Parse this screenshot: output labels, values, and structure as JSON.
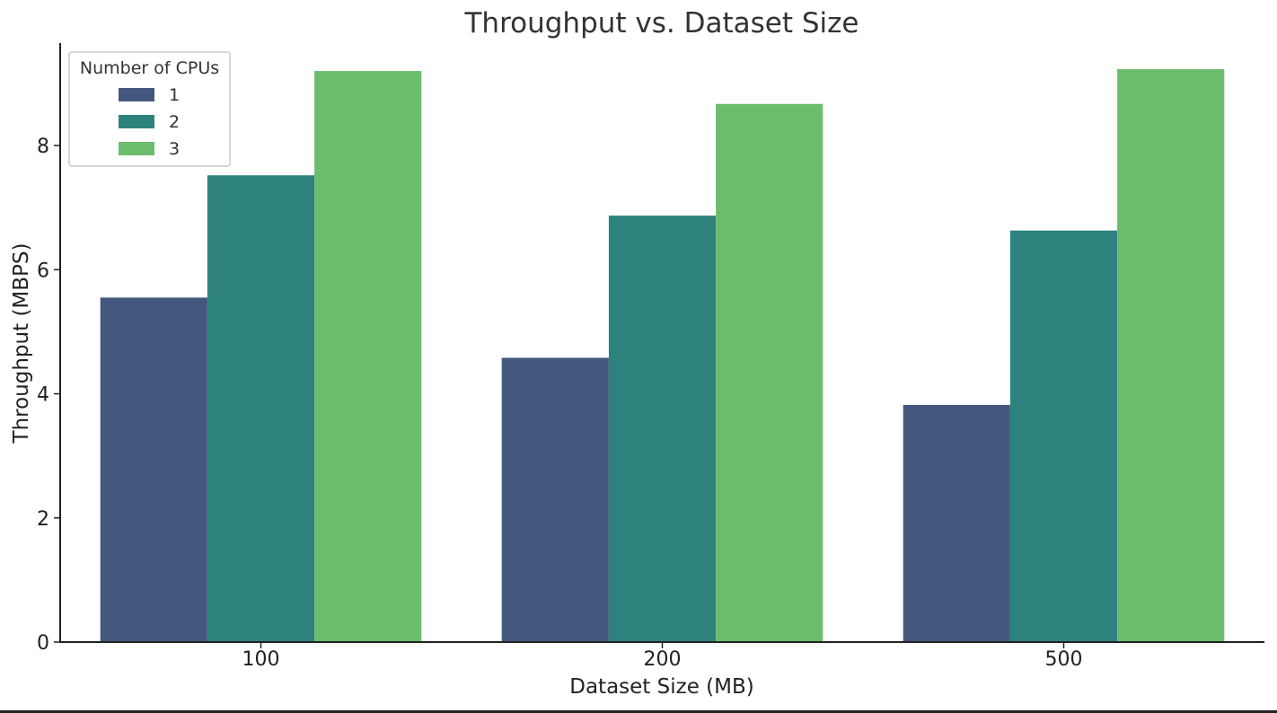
{
  "chart_data": {
    "type": "bar",
    "title": "Throughput vs. Dataset Size",
    "xlabel": "Dataset Size (MB)",
    "ylabel": "Throughput (MBPS)",
    "categories": [
      "100",
      "200",
      "500"
    ],
    "yticks": [
      0,
      2,
      4,
      6,
      8
    ],
    "ylim": [
      0,
      9.65
    ],
    "grid": false,
    "legend": {
      "title": "Number of CPUs",
      "placement": "top-left"
    },
    "series": [
      {
        "name": "1",
        "color": "#44587f",
        "values": [
          5.55,
          4.58,
          3.82
        ]
      },
      {
        "name": "2",
        "color": "#2e827e",
        "values": [
          7.52,
          6.87,
          6.63
        ]
      },
      {
        "name": "3",
        "color": "#6bbd6d",
        "values": [
          9.2,
          8.67,
          9.23
        ]
      }
    ]
  }
}
